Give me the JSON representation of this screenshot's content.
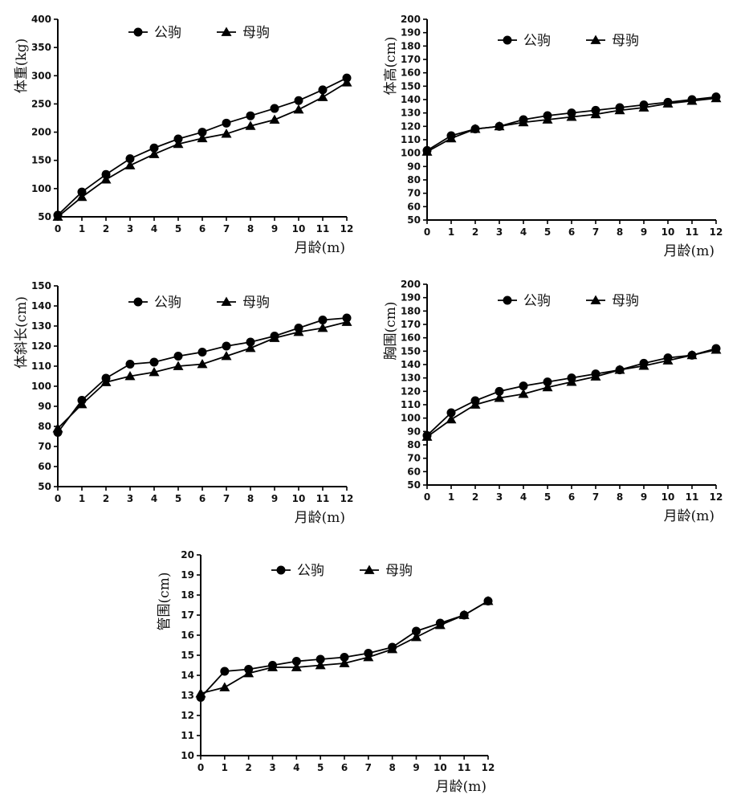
{
  "chart_data": [
    {
      "id": "weight",
      "type": "line",
      "x": [
        0,
        1,
        2,
        3,
        4,
        5,
        6,
        7,
        8,
        9,
        10,
        11,
        12
      ],
      "xlim": [
        0,
        12
      ],
      "ylim": [
        50,
        400
      ],
      "yticks": [
        50,
        100,
        150,
        200,
        250,
        300,
        350,
        400
      ],
      "ylabel": "体重(kg)",
      "xlabel": "月龄(m)",
      "legend_position": "top",
      "series": [
        {
          "name": "公驹",
          "marker": "circle",
          "values": [
            53,
            94,
            125,
            153,
            172,
            188,
            200,
            216,
            229,
            242,
            256,
            275,
            296
          ]
        },
        {
          "name": "母驹",
          "marker": "triangle",
          "values": [
            50,
            85,
            116,
            141,
            161,
            179,
            189,
            197,
            211,
            222,
            240,
            262,
            288
          ]
        }
      ]
    },
    {
      "id": "height",
      "type": "line",
      "x": [
        0,
        1,
        2,
        3,
        4,
        5,
        6,
        7,
        8,
        9,
        10,
        11,
        12
      ],
      "xlim": [
        0,
        12
      ],
      "ylim": [
        50,
        200
      ],
      "yticks": [
        50,
        60,
        70,
        80,
        90,
        100,
        110,
        120,
        130,
        140,
        150,
        160,
        170,
        180,
        190,
        200
      ],
      "ylabel": "体高(cm)",
      "xlabel": "月龄(m)",
      "legend_position": "top",
      "series": [
        {
          "name": "公驹",
          "marker": "circle",
          "values": [
            102,
            113,
            118,
            120,
            125,
            128,
            130,
            132,
            134,
            136,
            138,
            140,
            142
          ]
        },
        {
          "name": "母驹",
          "marker": "triangle",
          "values": [
            101,
            111,
            118,
            120,
            123,
            125,
            127,
            129,
            132,
            134,
            137,
            139,
            141
          ]
        }
      ]
    },
    {
      "id": "body-length",
      "type": "line",
      "x": [
        0,
        1,
        2,
        3,
        4,
        5,
        6,
        7,
        8,
        9,
        10,
        11,
        12
      ],
      "xlim": [
        0,
        12
      ],
      "ylim": [
        50,
        150
      ],
      "yticks": [
        50,
        60,
        70,
        80,
        90,
        100,
        110,
        120,
        130,
        140,
        150
      ],
      "ylabel": "体斜长(cm)",
      "xlabel": "月龄(m)",
      "legend_position": "top",
      "series": [
        {
          "name": "公驹",
          "marker": "circle",
          "values": [
            77,
            93,
            104,
            111,
            112,
            115,
            117,
            120,
            122,
            125,
            129,
            133,
            134
          ]
        },
        {
          "name": "母驹",
          "marker": "triangle",
          "values": [
            79,
            91,
            102,
            105,
            107,
            110,
            111,
            115,
            119,
            124,
            127,
            129,
            132
          ]
        }
      ]
    },
    {
      "id": "chest",
      "type": "line",
      "x": [
        0,
        1,
        2,
        3,
        4,
        5,
        6,
        7,
        8,
        9,
        10,
        11,
        12
      ],
      "xlim": [
        0,
        12
      ],
      "ylim": [
        50,
        200
      ],
      "yticks": [
        50,
        60,
        70,
        80,
        90,
        100,
        110,
        120,
        130,
        140,
        150,
        160,
        170,
        180,
        190,
        200
      ],
      "ylabel": "胸围(cm)",
      "xlabel": "月龄(m)",
      "legend_position": "top",
      "series": [
        {
          "name": "公驹",
          "marker": "circle",
          "values": [
            87,
            104,
            113,
            120,
            124,
            127,
            130,
            133,
            136,
            141,
            145,
            147,
            152
          ]
        },
        {
          "name": "母驹",
          "marker": "triangle",
          "values": [
            86,
            99,
            110,
            115,
            118,
            123,
            127,
            131,
            136,
            139,
            143,
            147,
            151
          ]
        }
      ]
    },
    {
      "id": "cannon",
      "type": "line",
      "x": [
        0,
        1,
        2,
        3,
        4,
        5,
        6,
        7,
        8,
        9,
        10,
        11,
        12
      ],
      "xlim": [
        0,
        12
      ],
      "ylim": [
        10,
        20
      ],
      "yticks": [
        10,
        11,
        12,
        13,
        14,
        15,
        16,
        17,
        18,
        19,
        20
      ],
      "ylabel": "管围(cm)",
      "xlabel": "月龄(m)",
      "legend_position": "top",
      "series": [
        {
          "name": "公驹",
          "marker": "circle",
          "values": [
            12.9,
            14.2,
            14.3,
            14.5,
            14.7,
            14.8,
            14.9,
            15.1,
            15.4,
            16.2,
            16.6,
            17.0,
            17.7
          ]
        },
        {
          "name": "母驹",
          "marker": "triangle",
          "values": [
            13.1,
            13.4,
            14.1,
            14.4,
            14.4,
            14.5,
            14.6,
            14.9,
            15.3,
            15.9,
            16.5,
            17.0,
            17.7
          ]
        }
      ]
    }
  ]
}
